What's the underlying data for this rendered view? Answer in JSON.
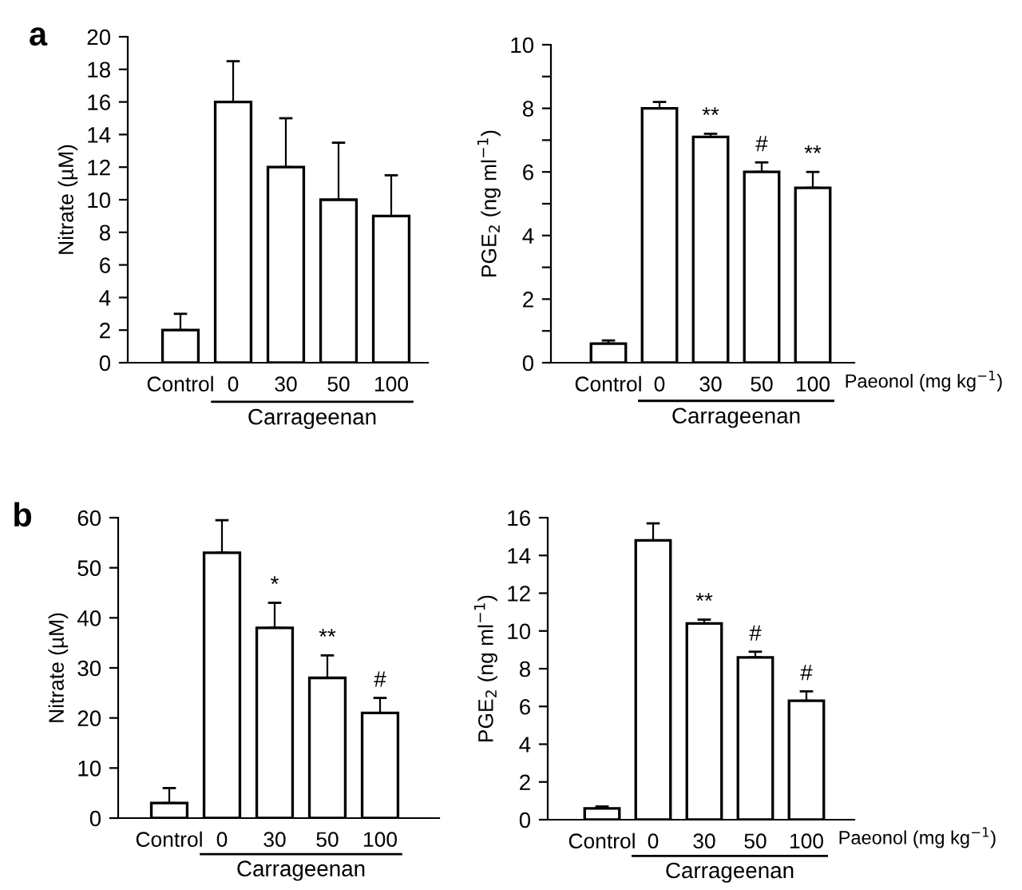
{
  "chart_data": [
    {
      "type": "bar",
      "title": "a",
      "ylabel": "Nitrate (µM)",
      "categories": [
        "Control",
        "0",
        "30",
        "50",
        "100"
      ],
      "values": [
        2,
        16,
        12,
        10,
        9
      ],
      "errors": [
        [
          2,
          3
        ],
        [
          16,
          18.5
        ],
        [
          12,
          15
        ],
        [
          10,
          13.5
        ],
        [
          9,
          11.5
        ]
      ],
      "color": "#ffffff",
      "ylim": [
        0,
        20
      ],
      "yticks": [
        0,
        2,
        4,
        6,
        8,
        10,
        12,
        14,
        16,
        18,
        20
      ],
      "annotations": [
        "Carrageenan"
      ]
    },
    {
      "type": "bar",
      "ylabel": "PGE$_{2}$ (ng ml$^{−1}$)",
      "xlabel": "Paeonol (mg kg$^{−1}$)",
      "categories": [
        "Control",
        "0",
        "30",
        "50",
        "100"
      ],
      "values": [
        0.6,
        8,
        7.1,
        6,
        5.5
      ],
      "errors": [
        [
          0.6,
          0.7
        ],
        [
          8,
          8.2
        ],
        [
          7.1,
          7.2
        ],
        [
          6,
          6.3
        ],
        [
          5.5,
          6.0
        ]
      ],
      "color": "#ffffff",
      "ylim": [
        0,
        10
      ],
      "yticks": [
        0,
        {
          "value": 1,
          "label": null
        },
        2,
        {
          "value": 3,
          "label": null
        },
        4,
        {
          "value": 5,
          "label": null
        },
        6,
        {
          "value": 7,
          "label": null
        },
        8,
        {
          "value": 9,
          "label": null
        },
        10
      ],
      "annotations": [
        {
          "text": "**",
          "x": "30",
          "y": 7.2
        },
        {
          "text": "#",
          "x": "50",
          "y": 6.3
        },
        {
          "text": "**",
          "x": "100",
          "y": 6.0
        },
        "Carrageenan"
      ]
    },
    {
      "type": "bar",
      "title": "b",
      "ylabel": "Nitrate (µM)",
      "categories": [
        "Control",
        "0",
        "30",
        "50",
        "100"
      ],
      "values": [
        3,
        53,
        38,
        28,
        21
      ],
      "errors": [
        [
          3,
          6
        ],
        [
          53,
          59.5
        ],
        [
          38,
          43
        ],
        [
          28,
          32.5
        ],
        [
          21,
          24
        ]
      ],
      "color": "#ffffff",
      "ylim": [
        0,
        60
      ],
      "yticks": [
        0,
        10,
        20,
        30,
        40,
        50,
        60
      ],
      "annotations": [
        {
          "text": "*",
          "x": "30",
          "y": 43
        },
        {
          "text": "**",
          "x": "50",
          "y": 32.5
        },
        {
          "text": "#",
          "x": "100",
          "y": 24
        },
        "Carrageenan"
      ]
    },
    {
      "type": "bar",
      "ylabel": "PGE$_{2}$ (ng ml$^{−1}$)",
      "xlabel": "Paeonol (mg kg$^{−1}$)",
      "categories": [
        "Control",
        "0",
        "30",
        "50",
        "100"
      ],
      "values": [
        0.6,
        14.8,
        10.4,
        8.6,
        6.3
      ],
      "errors": [
        [
          0.6,
          0.7
        ],
        [
          14.8,
          15.7
        ],
        [
          10.4,
          10.6
        ],
        [
          8.6,
          8.9
        ],
        [
          6.3,
          6.8
        ]
      ],
      "color": "#ffffff",
      "ylim": [
        0,
        16
      ],
      "yticks": [
        0,
        2,
        4,
        6,
        8,
        10,
        12,
        14,
        16
      ],
      "annotations": [
        {
          "text": "**",
          "x": "30",
          "y": 10.6
        },
        {
          "text": "#",
          "x": "50",
          "y": 8.9
        },
        {
          "text": "#",
          "x": "100",
          "y": 6.8
        },
        "Carrageenan"
      ]
    }
  ]
}
